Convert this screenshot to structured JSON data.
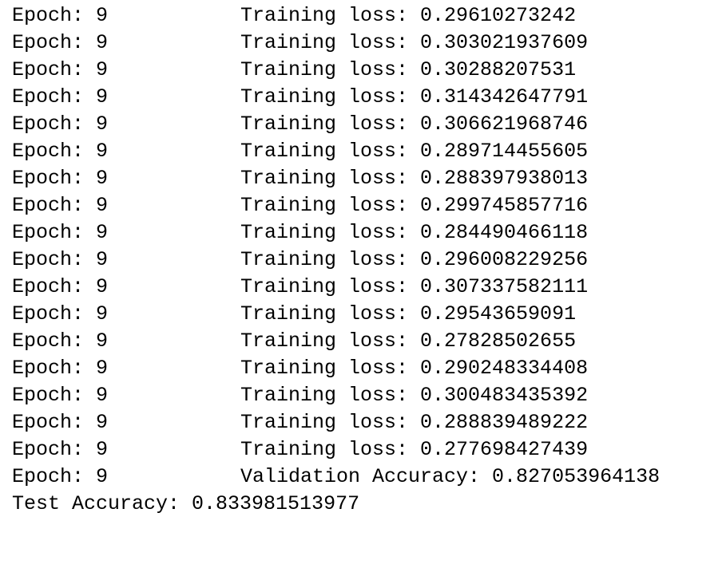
{
  "lines": [
    {
      "epoch": "Epoch: 9",
      "metric": "Training loss: 0.29610273242"
    },
    {
      "epoch": "Epoch: 9",
      "metric": "Training loss: 0.303021937609"
    },
    {
      "epoch": "Epoch: 9",
      "metric": "Training loss: 0.30288207531"
    },
    {
      "epoch": "Epoch: 9",
      "metric": "Training loss: 0.314342647791"
    },
    {
      "epoch": "Epoch: 9",
      "metric": "Training loss: 0.306621968746"
    },
    {
      "epoch": "Epoch: 9",
      "metric": "Training loss: 0.289714455605"
    },
    {
      "epoch": "Epoch: 9",
      "metric": "Training loss: 0.288397938013"
    },
    {
      "epoch": "Epoch: 9",
      "metric": "Training loss: 0.299745857716"
    },
    {
      "epoch": "Epoch: 9",
      "metric": "Training loss: 0.284490466118"
    },
    {
      "epoch": "Epoch: 9",
      "metric": "Training loss: 0.296008229256"
    },
    {
      "epoch": "Epoch: 9",
      "metric": "Training loss: 0.307337582111"
    },
    {
      "epoch": "Epoch: 9",
      "metric": "Training loss: 0.29543659091"
    },
    {
      "epoch": "Epoch: 9",
      "metric": "Training loss: 0.27828502655"
    },
    {
      "epoch": "Epoch: 9",
      "metric": "Training loss: 0.290248334408"
    },
    {
      "epoch": "Epoch: 9",
      "metric": "Training loss: 0.300483435392"
    },
    {
      "epoch": "Epoch: 9",
      "metric": "Training loss: 0.288839489222"
    },
    {
      "epoch": "Epoch: 9",
      "metric": "Training loss: 0.277698427439"
    },
    {
      "epoch": "Epoch: 9",
      "metric": "Validation Accuracy: 0.827053964138"
    }
  ],
  "test_accuracy": "Test Accuracy: 0.833981513977"
}
